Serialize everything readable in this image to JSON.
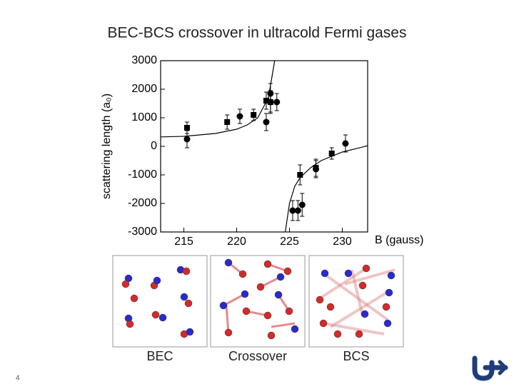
{
  "title": "BEC-BCS crossover in ultracold Fermi gases",
  "chart_data": {
    "type": "scatter",
    "x_label": "B (gauss)",
    "y_label": "scattering length (a₀)",
    "xlim": [
      212.8,
      232.4
    ],
    "ylim": [
      -3000,
      3000
    ],
    "xticks": [
      215,
      220,
      225,
      230
    ],
    "yticks": [
      -3000,
      -2000,
      -1000,
      0,
      1000,
      2000,
      3000
    ],
    "series": [
      {
        "marker": "square",
        "color": "#000000",
        "x": [
          215.3,
          219.1,
          221.6,
          222.8,
          223.2,
          226.0,
          227.5,
          229.0
        ],
        "values": [
          650,
          850,
          1100,
          1600,
          1550,
          -1000,
          -750,
          -250
        ],
        "errors": [
          200,
          250,
          200,
          300,
          350,
          350,
          300,
          200
        ]
      },
      {
        "marker": "circle",
        "color": "#000000",
        "x": [
          215.3,
          220.3,
          222.8,
          223.2,
          223.2,
          223.8,
          225.3,
          225.8,
          226.2,
          227.5,
          230.3
        ],
        "values": [
          250,
          1050,
          850,
          1850,
          1550,
          1550,
          -2250,
          -2250,
          -2050,
          -800,
          100
        ],
        "errors": [
          300,
          250,
          300,
          350,
          400,
          300,
          350,
          350,
          400,
          300,
          300
        ]
      },
      {
        "marker": "line",
        "color": "#000000",
        "x": [
          212.8,
          215,
          218,
          220,
          221,
          222,
          223,
          223.6,
          null,
          224.6,
          225,
          225.5,
          226,
          227,
          228,
          230,
          232.4
        ],
        "values": [
          330,
          350,
          450,
          600,
          750,
          1000,
          1700,
          3000,
          null,
          -3000,
          -2000,
          -1400,
          -1100,
          -750,
          -500,
          -200,
          20
        ]
      }
    ]
  },
  "panels": [
    {
      "label": "BEC"
    },
    {
      "label": "Crossover"
    },
    {
      "label": "BCS"
    }
  ],
  "page_number": "4"
}
